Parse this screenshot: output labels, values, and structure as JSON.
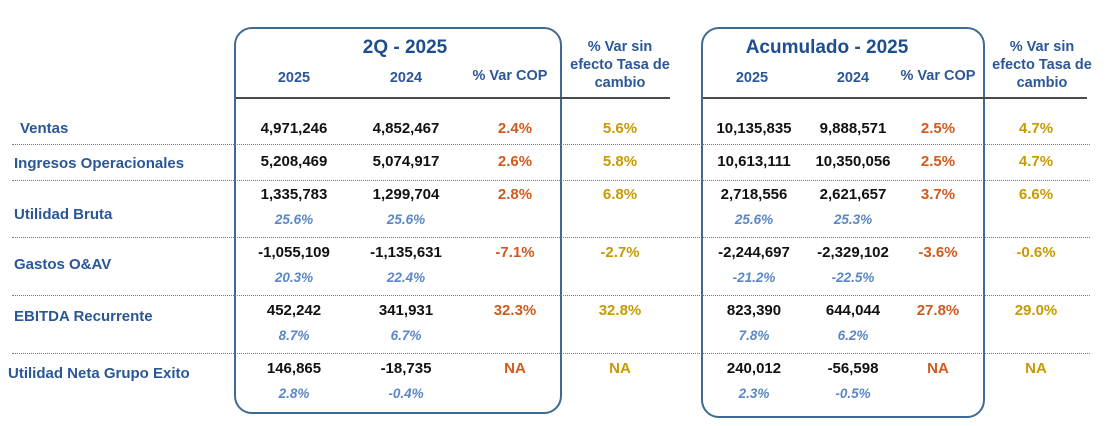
{
  "sections": {
    "q": {
      "title": "2Q - 2025",
      "col_2025": "2025",
      "col_2024": "2024",
      "var_cop": "% Var COP",
      "var_tasa": "% Var sin efecto Tasa de cambio"
    },
    "acc": {
      "title": "Acumulado - 2025",
      "col_2025": "2025",
      "col_2024": "2024",
      "var_cop": "% Var COP",
      "var_tasa": "% Var sin efecto Tasa de cambio"
    }
  },
  "rows": [
    {
      "label": "Ventas",
      "q": {
        "v2025": "4,971,246",
        "v2024": "4,852,467",
        "var_cop": "2.4%",
        "var_tasa": "5.6%"
      },
      "acc": {
        "v2025": "10,135,835",
        "v2024": "9,888,571",
        "var_cop": "2.5%",
        "var_tasa": "4.7%"
      }
    },
    {
      "label": "Ingresos Operacionales",
      "q": {
        "v2025": "5,208,469",
        "v2024": "5,074,917",
        "var_cop": "2.6%",
        "var_tasa": "5.8%"
      },
      "acc": {
        "v2025": "10,613,111",
        "v2024": "10,350,056",
        "var_cop": "2.5%",
        "var_tasa": "4.7%"
      }
    },
    {
      "label": "Utilidad Bruta",
      "q": {
        "v2025": "1,335,783",
        "v2024": "1,299,704",
        "p2025": "25.6%",
        "p2024": "25.6%",
        "var_cop": "2.8%",
        "var_tasa": "6.8%"
      },
      "acc": {
        "v2025": "2,718,556",
        "v2024": "2,621,657",
        "p2025": "25.6%",
        "p2024": "25.3%",
        "var_cop": "3.7%",
        "var_tasa": "6.6%"
      }
    },
    {
      "label": "Gastos O&AV",
      "q": {
        "v2025": "-1,055,109",
        "v2024": "-1,135,631",
        "p2025": "20.3%",
        "p2024": "22.4%",
        "var_cop": "-7.1%",
        "var_tasa": "-2.7%"
      },
      "acc": {
        "v2025": "-2,244,697",
        "v2024": "-2,329,102",
        "p2025": "-21.2%",
        "p2024": "-22.5%",
        "var_cop": "-3.6%",
        "var_tasa": "-0.6%"
      }
    },
    {
      "label": "EBITDA Recurrente",
      "q": {
        "v2025": "452,242",
        "v2024": "341,931",
        "p2025": "8.7%",
        "p2024": "6.7%",
        "var_cop": "32.3%",
        "var_tasa": "32.8%"
      },
      "acc": {
        "v2025": "823,390",
        "v2024": "644,044",
        "p2025": "7.8%",
        "p2024": "6.2%",
        "var_cop": "27.8%",
        "var_tasa": "29.0%"
      }
    },
    {
      "label": "Utilidad Neta Grupo Exito",
      "q": {
        "v2025": "146,865",
        "v2024": "-18,735",
        "p2025": "2.8%",
        "p2024": "-0.4%",
        "var_cop": "NA",
        "var_tasa": "NA"
      },
      "acc": {
        "v2025": "240,012",
        "v2024": "-56,598",
        "p2025": "2.3%",
        "p2024": "-0.5%",
        "var_cop": "NA",
        "var_tasa": "NA"
      }
    }
  ],
  "colors": {
    "frame": "#3f6a96",
    "header": "#2b5797",
    "var_cop": "#d05a1e",
    "var_tasa": "#c79a00",
    "pct": "#5a87c5"
  }
}
